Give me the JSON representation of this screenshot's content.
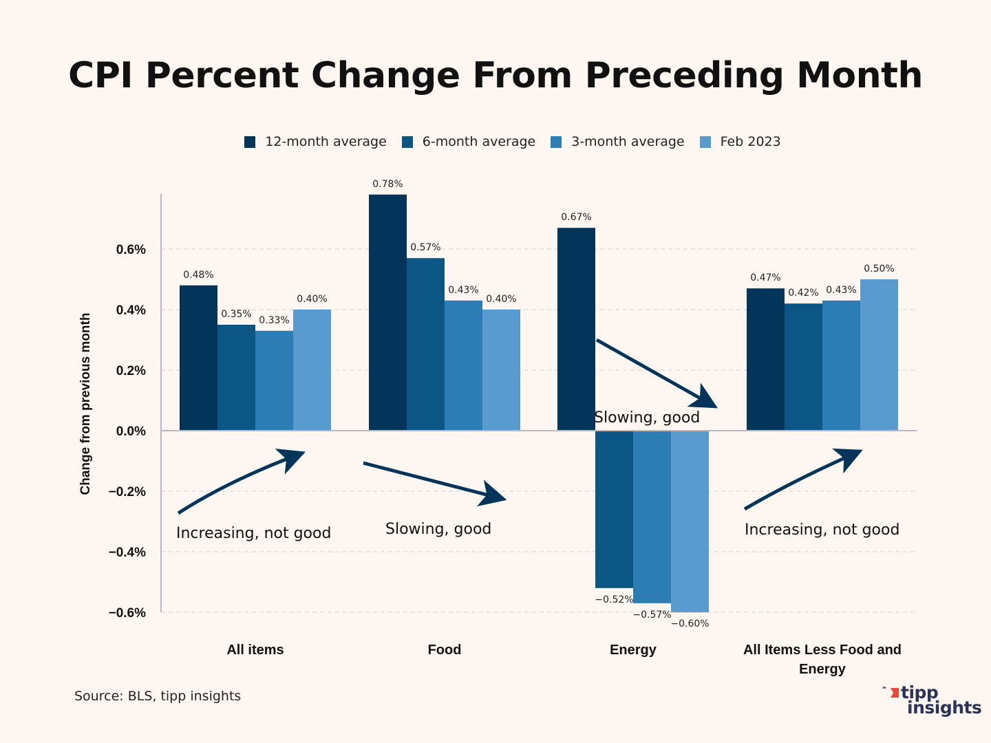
{
  "chart_data": {
    "type": "bar",
    "title": "CPI Percent Change From Preceding Month",
    "xlabel": "",
    "ylabel": "Change from previous month",
    "ylim": [
      -0.6,
      0.78
    ],
    "yticks": [
      -0.6,
      -0.4,
      -0.2,
      0.0,
      0.2,
      0.4,
      0.6
    ],
    "ytick_labels": [
      "−0.6%",
      "−0.4%",
      "−0.2%",
      "0.0%",
      "0.2%",
      "0.4%",
      "0.6%"
    ],
    "grid": true,
    "legend_position": "top-center",
    "categories": [
      "All items",
      "Food",
      "Energy",
      "All Items Less Food and Energy"
    ],
    "series": [
      {
        "name": "12-month average",
        "color": "#03355a",
        "values": [
          0.48,
          0.78,
          0.67,
          0.47
        ],
        "labels": [
          "0.48%",
          "0.78%",
          "0.67%",
          "0.47%"
        ]
      },
      {
        "name": "6-month average",
        "color": "#0b5685",
        "values": [
          0.35,
          0.57,
          -0.52,
          0.42
        ],
        "labels": [
          "0.35%",
          "0.57%",
          "−0.52%",
          "0.42%"
        ]
      },
      {
        "name": "3-month average",
        "color": "#2c7db3",
        "values": [
          0.33,
          0.43,
          -0.57,
          0.43
        ],
        "labels": [
          "0.33%",
          "0.43%",
          "−0.57%",
          "0.43%"
        ]
      },
      {
        "name": "Feb 2023",
        "color": "#5a9bcf",
        "values": [
          0.4,
          0.4,
          -0.6,
          0.5
        ],
        "labels": [
          "0.40%",
          "0.40%",
          "−0.60%",
          "0.50%"
        ]
      }
    ],
    "annotations": [
      {
        "text": "Increasing, not good",
        "category": "All items",
        "direction": "up"
      },
      {
        "text": "Slowing, good",
        "category": "Food",
        "direction": "down"
      },
      {
        "text": "Slowing, good",
        "category": "Energy",
        "direction": "down"
      },
      {
        "text": "Increasing, not good",
        "category": "All Items Less Food and Energy",
        "direction": "up"
      }
    ]
  },
  "source": "Source: BLS, tipp insights",
  "logo": {
    "line1": "tipp",
    "line2": "insights"
  },
  "colors": {
    "background": "#fdf6f1",
    "arrow": "#03355a",
    "logo_accent": "#e8483a",
    "logo_text": "#2b3356"
  }
}
